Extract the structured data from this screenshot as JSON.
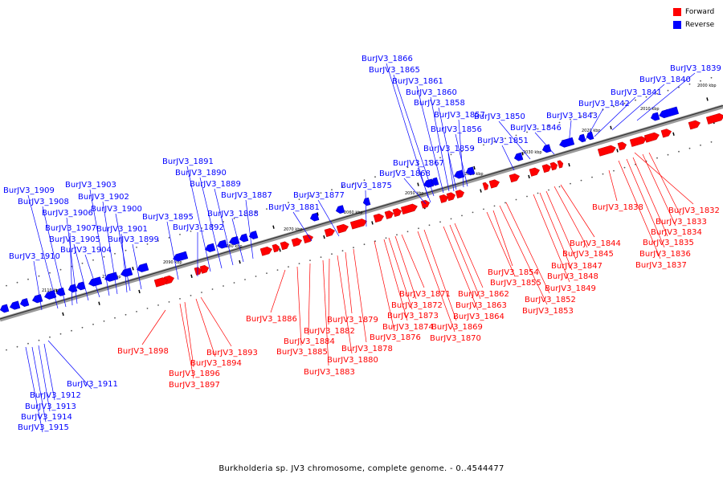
{
  "legend": {
    "forward_label": "Forward",
    "reverse_label": "Reverse",
    "forward_color": "#ff0000",
    "reverse_color": "#0000ff"
  },
  "caption": "Burkholderia sp. JV3 chromosome, complete genome. - 0..4544477",
  "ticks": [
    "2000 kbp",
    "2010 kbp",
    "2020 kbp",
    "2030 kbp",
    "2040 kbp",
    "2050 kbp",
    "2060 kbp",
    "2070 kbp",
    "2080 kbp",
    "2090 kbp",
    "2100 kbp",
    "2110 kbp"
  ],
  "genes": [
    {
      "id": "BurJV3_1832",
      "strand": "forward"
    },
    {
      "id": "BurJV3_1833",
      "strand": "forward"
    },
    {
      "id": "BurJV3_1834",
      "strand": "forward"
    },
    {
      "id": "BurJV3_1835",
      "strand": "forward"
    },
    {
      "id": "BurJV3_1836",
      "strand": "forward"
    },
    {
      "id": "BurJV3_1837",
      "strand": "forward"
    },
    {
      "id": "BurJV3_1838",
      "strand": "forward"
    },
    {
      "id": "BurJV3_1839",
      "strand": "reverse"
    },
    {
      "id": "BurJV3_1840",
      "strand": "reverse"
    },
    {
      "id": "BurJV3_1841",
      "strand": "reverse"
    },
    {
      "id": "BurJV3_1842",
      "strand": "reverse"
    },
    {
      "id": "BurJV3_1843",
      "strand": "reverse"
    },
    {
      "id": "BurJV3_1844",
      "strand": "forward"
    },
    {
      "id": "BurJV3_1845",
      "strand": "forward"
    },
    {
      "id": "BurJV3_1846",
      "strand": "reverse"
    },
    {
      "id": "BurJV3_1847",
      "strand": "forward"
    },
    {
      "id": "BurJV3_1848",
      "strand": "forward"
    },
    {
      "id": "BurJV3_1849",
      "strand": "forward"
    },
    {
      "id": "BurJV3_1850",
      "strand": "reverse"
    },
    {
      "id": "BurJV3_1851",
      "strand": "reverse"
    },
    {
      "id": "BurJV3_1852",
      "strand": "forward"
    },
    {
      "id": "BurJV3_1853",
      "strand": "forward"
    },
    {
      "id": "BurJV3_1854",
      "strand": "forward"
    },
    {
      "id": "BurJV3_1855",
      "strand": "forward"
    },
    {
      "id": "BurJV3_1856",
      "strand": "reverse"
    },
    {
      "id": "BurJV3_1857",
      "strand": "reverse"
    },
    {
      "id": "BurJV3_1858",
      "strand": "reverse"
    },
    {
      "id": "BurJV3_1859",
      "strand": "reverse"
    },
    {
      "id": "BurJV3_1860",
      "strand": "reverse"
    },
    {
      "id": "BurJV3_1861",
      "strand": "reverse"
    },
    {
      "id": "BurJV3_1862",
      "strand": "forward"
    },
    {
      "id": "BurJV3_1863",
      "strand": "forward"
    },
    {
      "id": "BurJV3_1864",
      "strand": "forward"
    },
    {
      "id": "BurJV3_1865",
      "strand": "reverse"
    },
    {
      "id": "BurJV3_1866",
      "strand": "reverse"
    },
    {
      "id": "BurJV3_1867",
      "strand": "reverse"
    },
    {
      "id": "BurJV3_1868",
      "strand": "reverse"
    },
    {
      "id": "BurJV3_1869",
      "strand": "forward"
    },
    {
      "id": "BurJV3_1870",
      "strand": "forward"
    },
    {
      "id": "BurJV3_1871",
      "strand": "forward"
    },
    {
      "id": "BurJV3_1872",
      "strand": "forward"
    },
    {
      "id": "BurJV3_1873",
      "strand": "forward"
    },
    {
      "id": "BurJV3_1874",
      "strand": "forward"
    },
    {
      "id": "BurJV3_1875",
      "strand": "reverse"
    },
    {
      "id": "BurJV3_1876",
      "strand": "forward"
    },
    {
      "id": "BurJV3_1877",
      "strand": "reverse"
    },
    {
      "id": "BurJV3_1878",
      "strand": "forward"
    },
    {
      "id": "BurJV3_1879",
      "strand": "forward"
    },
    {
      "id": "BurJV3_1880",
      "strand": "forward"
    },
    {
      "id": "BurJV3_1881",
      "strand": "reverse"
    },
    {
      "id": "BurJV3_1882",
      "strand": "forward"
    },
    {
      "id": "BurJV3_1883",
      "strand": "forward"
    },
    {
      "id": "BurJV3_1884",
      "strand": "forward"
    },
    {
      "id": "BurJV3_1885",
      "strand": "forward"
    },
    {
      "id": "BurJV3_1886",
      "strand": "forward"
    },
    {
      "id": "BurJV3_1887",
      "strand": "reverse"
    },
    {
      "id": "BurJV3_1888",
      "strand": "reverse"
    },
    {
      "id": "BurJV3_1889",
      "strand": "reverse"
    },
    {
      "id": "BurJV3_1890",
      "strand": "reverse"
    },
    {
      "id": "BurJV3_1891",
      "strand": "reverse"
    },
    {
      "id": "BurJV3_1892",
      "strand": "reverse"
    },
    {
      "id": "BurJV3_1893",
      "strand": "forward"
    },
    {
      "id": "BurJV3_1894",
      "strand": "forward"
    },
    {
      "id": "BurJV3_1895",
      "strand": "reverse"
    },
    {
      "id": "BurJV3_1896",
      "strand": "forward"
    },
    {
      "id": "BurJV3_1897",
      "strand": "forward"
    },
    {
      "id": "BurJV3_1898",
      "strand": "forward"
    },
    {
      "id": "BurJV3_1899",
      "strand": "reverse"
    },
    {
      "id": "BurJV3_1900",
      "strand": "reverse"
    },
    {
      "id": "BurJV3_1901",
      "strand": "reverse"
    },
    {
      "id": "BurJV3_1902",
      "strand": "reverse"
    },
    {
      "id": "BurJV3_1903",
      "strand": "reverse"
    },
    {
      "id": "BurJV3_1904",
      "strand": "reverse"
    },
    {
      "id": "BurJV3_1905",
      "strand": "reverse"
    },
    {
      "id": "BurJV3_1906",
      "strand": "reverse"
    },
    {
      "id": "BurJV3_1907",
      "strand": "reverse"
    },
    {
      "id": "BurJV3_1908",
      "strand": "reverse"
    },
    {
      "id": "BurJV3_1909",
      "strand": "reverse"
    },
    {
      "id": "BurJV3_1910",
      "strand": "reverse"
    },
    {
      "id": "BurJV3_1911",
      "strand": "reverse"
    },
    {
      "id": "BurJV3_1912",
      "strand": "reverse"
    },
    {
      "id": "BurJV3_1913",
      "strand": "reverse"
    },
    {
      "id": "BurJV3_1914",
      "strand": "reverse"
    },
    {
      "id": "BurJV3_1915",
      "strand": "reverse"
    }
  ]
}
